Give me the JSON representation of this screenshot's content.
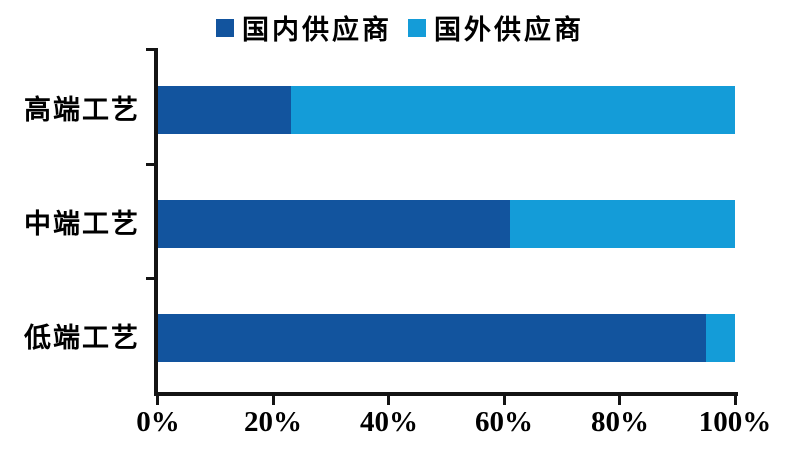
{
  "legend": {
    "items": [
      {
        "label": "国内供应商"
      },
      {
        "label": "国外供应商"
      }
    ]
  },
  "chart_data": {
    "type": "bar",
    "orientation": "horizontal",
    "stacked": true,
    "title": "",
    "xlabel": "",
    "ylabel": "",
    "categories": [
      "高端工艺",
      "中端工艺",
      "低端工艺"
    ],
    "series": [
      {
        "name": "国内供应商",
        "color": "#12549E",
        "values": [
          23,
          61,
          95
        ]
      },
      {
        "name": "国外供应商",
        "color": "#149CD8",
        "values": [
          77,
          39,
          5
        ]
      }
    ],
    "xlim": [
      0,
      100
    ],
    "x_ticks": [
      "0%",
      "20%",
      "40%",
      "60%",
      "80%",
      "100%"
    ],
    "grid": false,
    "legend_position": "top"
  },
  "colors": {
    "axis": "#141414",
    "background": "#ffffff",
    "text": "#000000"
  }
}
